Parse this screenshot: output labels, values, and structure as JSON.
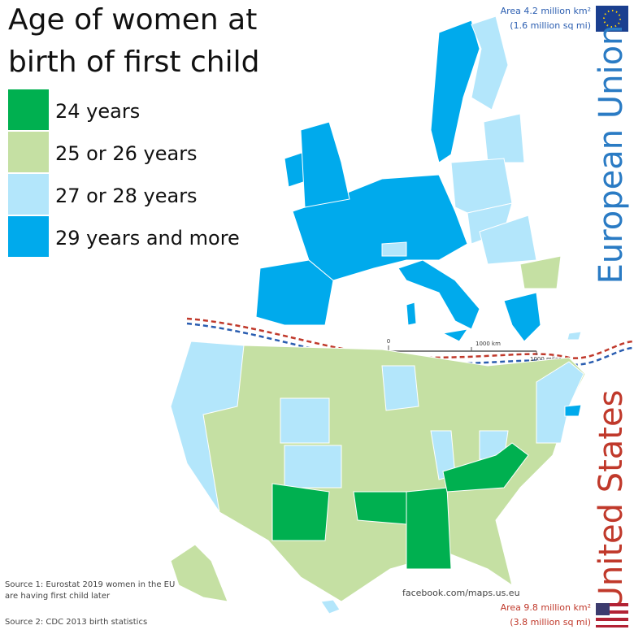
{
  "title": [
    "Age of women at",
    "birth of first child"
  ],
  "legend": [
    {
      "label": "24 years",
      "color": "#00b050"
    },
    {
      "label": "25 or 26 years",
      "color": "#c5e0a3"
    },
    {
      "label": "27 or 28 years",
      "color": "#b3e6fb"
    },
    {
      "label": "29 years and more",
      "color": "#00aaec"
    }
  ],
  "eu": {
    "name": "European Union",
    "area": "Area 4.2 million km²",
    "area_imperial": "(1.6 million sq mi)"
  },
  "us": {
    "name": "United States",
    "area": "Area 9.8 million km²",
    "area_imperial": "(3.8 million sq mi)"
  },
  "scale": {
    "origin": "0",
    "km": "1000 km",
    "miles": "1000 miles"
  },
  "sources": [
    "Source 1: Eurostat 2019 women in the EU",
    "are having first child later",
    "Source 2: CDC 2013 birth statistics"
  ],
  "credit": "facebook.com/maps.us.eu"
}
